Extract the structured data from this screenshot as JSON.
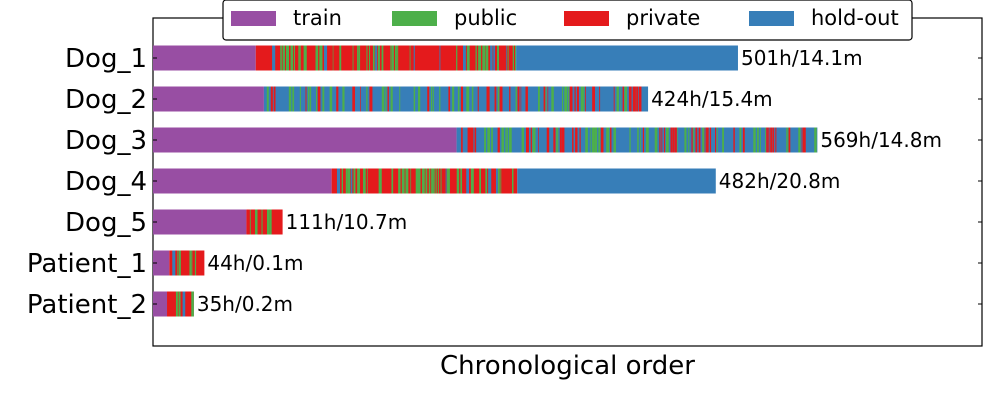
{
  "chart_data": {
    "type": "bar",
    "orientation": "horizontal",
    "stacked": true,
    "xlabel": "Chronological order",
    "ylabel": "",
    "legend": {
      "placement": "top-center",
      "entries": [
        {
          "name": "train",
          "color": "#984ea3"
        },
        {
          "name": "public",
          "color": "#4daf4a"
        },
        {
          "name": "private",
          "color": "#e41a1c"
        },
        {
          "name": "hold-out",
          "color": "#377eb8"
        }
      ]
    },
    "colors": {
      "train": "#984ea3",
      "public": "#4daf4a",
      "private": "#e41a1c",
      "hold-out": "#377eb8"
    },
    "categories": [
      "Dog_1",
      "Dog_2",
      "Dog_3",
      "Dog_4",
      "Dog_5",
      "Patient_1",
      "Patient_2"
    ],
    "labels": [
      "501h/14.1m",
      "424h/15.4m",
      "569h/14.8m",
      "482h/20.8m",
      "111h/10.7m",
      "44h/0.1m",
      "35h/0.2m"
    ],
    "total_hours": [
      501,
      424,
      569,
      482,
      111,
      44,
      35
    ],
    "train_hours": [
      88,
      95,
      260,
      153,
      80,
      14,
      12
    ],
    "holdout_hours": [
      190,
      0,
      0,
      170,
      0,
      0,
      0
    ],
    "xlim": [
      0,
      710
    ],
    "grid": false
  }
}
